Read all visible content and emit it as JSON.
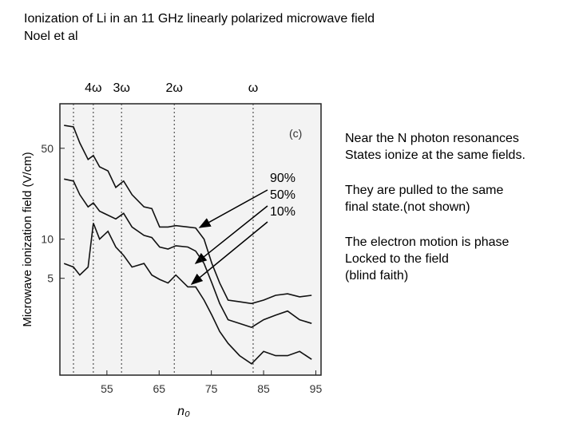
{
  "slide": {
    "title_lines": [
      "Ionization of Li in an 11 GHz linearly polarized microwave field",
      "Noel et al"
    ],
    "notes": [
      [
        "Near the N photon resonances",
        "States ionize at the same fields."
      ],
      [
        "They are pulled to the same",
        "final state.(not shown)"
      ],
      [
        "The electron motion is phase",
        "Locked to the field",
        "(blind faith)"
      ]
    ]
  },
  "chart_data": {
    "type": "line",
    "panel_label": "(c)",
    "x_label": "n₀",
    "y_label": "Microwave ionization field (V/cm)",
    "x": [
      46.8,
      48.6,
      49.8,
      51.4,
      52.4,
      53.6,
      55.2,
      56.7,
      58.2,
      59.8,
      62.1,
      63.6,
      65.1,
      66.7,
      68.2,
      70.5,
      72.0,
      73.6,
      75.1,
      76.6,
      78.2,
      80.4,
      82.7,
      85.0,
      87.3,
      89.6,
      91.9,
      94.2
    ],
    "series": [
      {
        "name": "90%",
        "color": "#111111",
        "values": [
          75,
          73,
          55,
          41,
          44,
          36,
          33.5,
          25,
          28,
          22,
          17.7,
          17.2,
          12.4,
          12.4,
          12.7,
          12.4,
          12.2,
          10,
          6.5,
          4.6,
          3.4,
          3.3,
          3.2,
          3.4,
          3.7,
          3.8,
          3.6,
          3.7
        ]
      },
      {
        "name": "50%",
        "color": "#111111",
        "values": [
          29,
          28,
          22,
          17.7,
          19,
          16.4,
          15.3,
          14.3,
          15.8,
          12.4,
          10.7,
          10.3,
          8.7,
          8.4,
          8.9,
          8.7,
          8.1,
          6.5,
          4.6,
          3.2,
          2.4,
          2.25,
          2.1,
          2.4,
          2.6,
          2.8,
          2.4,
          2.25
        ]
      },
      {
        "name": "10%",
        "color": "#111111",
        "values": [
          6.5,
          6.1,
          5.3,
          6.1,
          13.3,
          10,
          11.5,
          8.7,
          7.5,
          6.1,
          6.5,
          5.3,
          4.9,
          4.6,
          5.3,
          4.3,
          4.3,
          3.4,
          2.6,
          1.95,
          1.58,
          1.27,
          1.1,
          1.37,
          1.27,
          1.27,
          1.37,
          1.19
        ]
      }
    ],
    "resonances": {
      "x": [
        48.6,
        52.4,
        57.8,
        67.9,
        83.0
      ],
      "labels": [
        null,
        "4ω",
        "3ω",
        "2ω",
        "ω"
      ]
    },
    "xlim": [
      46,
      96
    ],
    "ylim": [
      0.9,
      110
    ],
    "yscale": "log",
    "xticks": [
      55,
      65,
      75,
      85,
      95
    ],
    "yticks": [
      5,
      10,
      50
    ]
  }
}
